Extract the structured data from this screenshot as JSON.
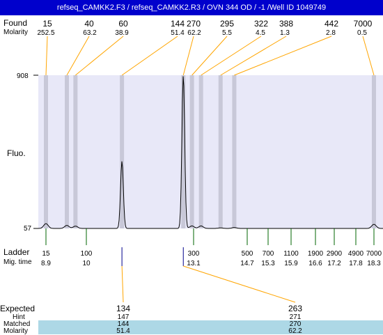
{
  "title": "refseq_CAMKK2.F3 / refseq_CAMKK2.R3 / OVN 344 OD  / -1  /Well ID 1049749",
  "labels": {
    "found": "Found",
    "molarity": "Molarity",
    "fluo": "Fluo.",
    "y_top": "908",
    "y_bottom": "57",
    "ladder": "Ladder",
    "mig_time": "Mig. time",
    "expected": "Expected",
    "hint": "Hint",
    "matched": "Matched",
    "molarity_bottom": "Molarity"
  },
  "colors": {
    "title_bg": "#0000cc",
    "plot_bg": "#e8e8f8",
    "band": "#c8c8d8",
    "connector": "#ffa500",
    "ladder_tick": "#006400",
    "row_highlight": "#add8e6"
  },
  "chart_data": {
    "type": "line",
    "ylim": [
      57,
      908
    ],
    "found_peaks": [
      {
        "size": "15",
        "molarity": "252.5"
      },
      {
        "size": "40",
        "molarity": "63.2"
      },
      {
        "size": "60",
        "molarity": "38.9"
      },
      {
        "size": "144",
        "molarity": "51.4"
      },
      {
        "size": "270",
        "molarity": "62.2"
      },
      {
        "size": "295",
        "molarity": "5.5"
      },
      {
        "size": "322",
        "molarity": "4.5"
      },
      {
        "size": "388",
        "molarity": "1.3"
      },
      {
        "size": "442",
        "molarity": "2.8"
      },
      {
        "size": "7000",
        "molarity": "0.5"
      }
    ],
    "ladder": [
      {
        "size": "15",
        "time": "8.9"
      },
      {
        "size": "100",
        "time": "10"
      },
      {
        "size": "300",
        "time": "13.1"
      },
      {
        "size": "500",
        "time": "14.7"
      },
      {
        "size": "700",
        "time": "15.3"
      },
      {
        "size": "1100",
        "time": "15.9"
      },
      {
        "size": "1900",
        "time": "16.6"
      },
      {
        "size": "2900",
        "time": "17.2"
      },
      {
        "size": "4900",
        "time": "17.8"
      },
      {
        "size": "7000",
        "time": "18.3"
      }
    ],
    "expected": [
      {
        "expected": "134",
        "hint": "147",
        "matched": "144",
        "molarity": "51.4"
      },
      {
        "expected": "263",
        "hint": "271",
        "matched": "270",
        "molarity": "62.2"
      }
    ],
    "trace_peaks": [
      {
        "size": 15,
        "height": 84
      },
      {
        "size": 40,
        "height": 74
      },
      {
        "size": 60,
        "height": 70
      },
      {
        "size": 144,
        "height": 430
      },
      {
        "size": 270,
        "height": 908
      },
      {
        "size": 295,
        "height": 71
      },
      {
        "size": 322,
        "height": 71
      },
      {
        "size": 388,
        "height": 60
      },
      {
        "size": 442,
        "height": 62
      },
      {
        "size": 7000,
        "height": 80
      }
    ]
  }
}
